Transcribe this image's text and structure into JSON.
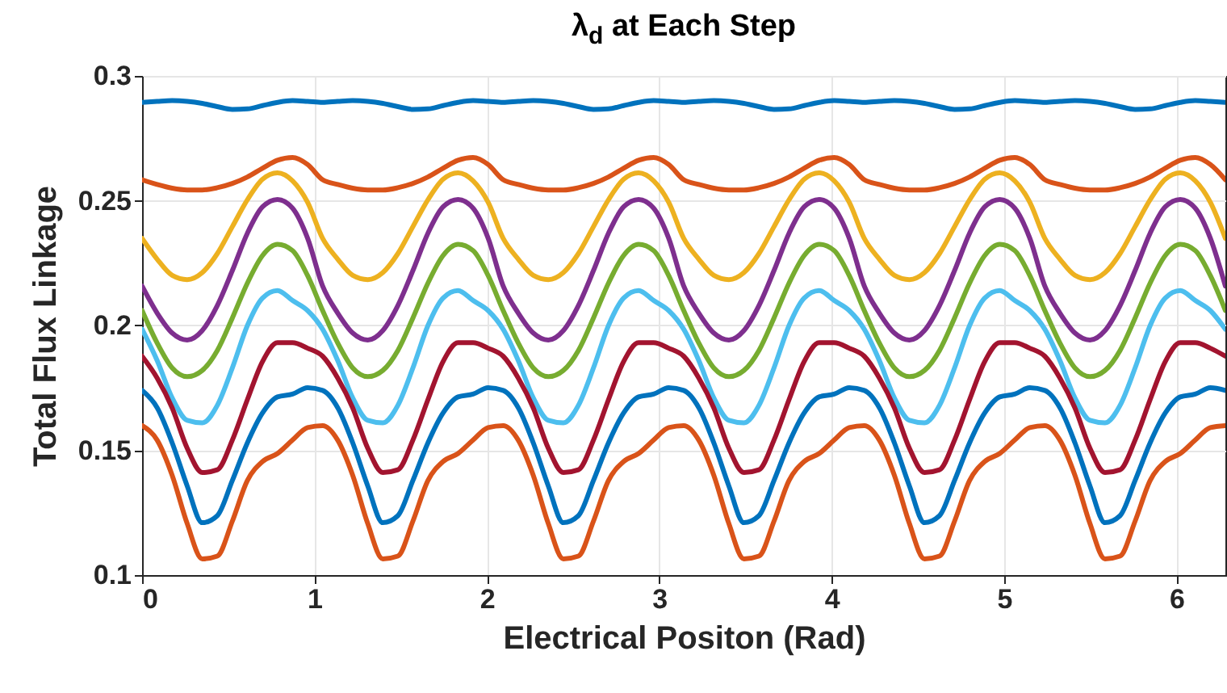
{
  "chart_data": {
    "type": "line",
    "title": "λ$_{d}$ at Each Step",
    "xlabel": "Electrical Positon (Rad)",
    "ylabel": "Total Flux Linkage",
    "x": [
      0,
      0.0873,
      0.1745,
      0.2618,
      0.3491,
      0.4363,
      0.5236,
      0.6109,
      0.6981,
      0.7854,
      0.8727,
      0.9599,
      1.0472,
      1.1345,
      1.2217,
      1.309,
      1.3963,
      1.4835,
      1.5708,
      1.6581,
      1.7453,
      1.8326,
      1.9199,
      2.0071,
      2.0944,
      2.1817,
      2.2689,
      2.3562,
      2.4435,
      2.5307,
      2.618,
      2.7053,
      2.7925,
      2.8798,
      2.9671,
      3.0543,
      3.1416,
      3.2289,
      3.3161,
      3.4034,
      3.4907,
      3.5779,
      3.6652,
      3.7525,
      3.8397,
      3.927,
      4.0143,
      4.1015,
      4.1888,
      4.2761,
      4.3633,
      4.4506,
      4.5379,
      4.6251,
      4.7124,
      4.7997,
      4.8869,
      4.9742,
      5.0615,
      5.1487,
      5.236,
      5.3233,
      5.4105,
      5.4978,
      5.5851,
      5.6723,
      5.7596,
      5.8469,
      5.9341,
      6.0214,
      6.1087,
      6.1959,
      6.2832
    ],
    "series": [
      {
        "color": "#0072bd",
        "values": [
          0.2894,
          0.2898,
          0.2901,
          0.2898,
          0.289,
          0.2877,
          0.2866,
          0.2868,
          0.2881,
          0.2894,
          0.2901,
          0.2898,
          0.2894,
          0.2898,
          0.2901,
          0.2898,
          0.289,
          0.2877,
          0.2866,
          0.2868,
          0.2881,
          0.2894,
          0.2901,
          0.2898,
          0.2894,
          0.2898,
          0.2901,
          0.2898,
          0.289,
          0.2877,
          0.2866,
          0.2868,
          0.2881,
          0.2894,
          0.2901,
          0.2898,
          0.2894,
          0.2898,
          0.2901,
          0.2898,
          0.289,
          0.2877,
          0.2866,
          0.2868,
          0.2881,
          0.2894,
          0.2901,
          0.2898,
          0.2894,
          0.2898,
          0.2901,
          0.2898,
          0.289,
          0.2877,
          0.2866,
          0.2868,
          0.2881,
          0.2894,
          0.2901,
          0.2898,
          0.2894,
          0.2898,
          0.2901,
          0.2898,
          0.289,
          0.2877,
          0.2866,
          0.2868,
          0.2881,
          0.2894,
          0.2901,
          0.2898,
          0.2894
        ]
      },
      {
        "color": "#d95319",
        "values": [
          0.2584,
          0.2565,
          0.255,
          0.2543,
          0.2543,
          0.2552,
          0.2569,
          0.2595,
          0.263,
          0.2662,
          0.2673,
          0.2645,
          0.2584,
          0.2565,
          0.255,
          0.2543,
          0.2543,
          0.2552,
          0.2569,
          0.2595,
          0.263,
          0.2662,
          0.2673,
          0.2645,
          0.2584,
          0.2565,
          0.255,
          0.2543,
          0.2543,
          0.2552,
          0.2569,
          0.2595,
          0.263,
          0.2662,
          0.2673,
          0.2645,
          0.2584,
          0.2565,
          0.255,
          0.2543,
          0.2543,
          0.2552,
          0.2569,
          0.2595,
          0.263,
          0.2662,
          0.2673,
          0.2645,
          0.2584,
          0.2565,
          0.255,
          0.2543,
          0.2543,
          0.2552,
          0.2569,
          0.2595,
          0.263,
          0.2662,
          0.2673,
          0.2645,
          0.2584,
          0.2565,
          0.255,
          0.2543,
          0.2543,
          0.2552,
          0.2569,
          0.2595,
          0.263,
          0.2662,
          0.2673,
          0.2645,
          0.2584
        ]
      },
      {
        "color": "#edb120",
        "values": [
          0.2349,
          0.2266,
          0.2201,
          0.2184,
          0.2212,
          0.2288,
          0.2396,
          0.2504,
          0.2586,
          0.2612,
          0.258,
          0.2494,
          0.2349,
          0.2266,
          0.2201,
          0.2184,
          0.2212,
          0.2288,
          0.2396,
          0.2504,
          0.2586,
          0.2612,
          0.258,
          0.2494,
          0.2349,
          0.2266,
          0.2201,
          0.2184,
          0.2212,
          0.2288,
          0.2396,
          0.2504,
          0.2586,
          0.2612,
          0.258,
          0.2494,
          0.2349,
          0.2266,
          0.2201,
          0.2184,
          0.2212,
          0.2288,
          0.2396,
          0.2504,
          0.2586,
          0.2612,
          0.258,
          0.2494,
          0.2349,
          0.2266,
          0.2201,
          0.2184,
          0.2212,
          0.2288,
          0.2396,
          0.2504,
          0.2586,
          0.2612,
          0.258,
          0.2494,
          0.2349,
          0.2266,
          0.2201,
          0.2184,
          0.2212,
          0.2288,
          0.2396,
          0.2504,
          0.2586,
          0.2612,
          0.258,
          0.2494,
          0.2349
        ]
      },
      {
        "color": "#7e2f8e",
        "values": [
          0.2158,
          0.205,
          0.197,
          0.1942,
          0.198,
          0.208,
          0.222,
          0.237,
          0.2475,
          0.2505,
          0.247,
          0.235,
          0.2158,
          0.205,
          0.197,
          0.1942,
          0.198,
          0.208,
          0.222,
          0.237,
          0.2475,
          0.2505,
          0.247,
          0.235,
          0.2158,
          0.205,
          0.197,
          0.1942,
          0.198,
          0.208,
          0.222,
          0.237,
          0.2475,
          0.2505,
          0.247,
          0.235,
          0.2158,
          0.205,
          0.197,
          0.1942,
          0.198,
          0.208,
          0.222,
          0.237,
          0.2475,
          0.2505,
          0.247,
          0.235,
          0.2158,
          0.205,
          0.197,
          0.1942,
          0.198,
          0.208,
          0.222,
          0.237,
          0.2475,
          0.2505,
          0.247,
          0.235,
          0.2158,
          0.205,
          0.197,
          0.1942,
          0.198,
          0.208,
          0.222,
          0.237,
          0.2475,
          0.2505,
          0.247,
          0.235,
          0.2158
        ]
      },
      {
        "color": "#77ac30",
        "values": [
          0.206,
          0.193,
          0.183,
          0.1795,
          0.182,
          0.19,
          0.203,
          0.217,
          0.228,
          0.2325,
          0.23,
          0.22,
          0.206,
          0.193,
          0.183,
          0.1795,
          0.182,
          0.19,
          0.203,
          0.217,
          0.228,
          0.2325,
          0.23,
          0.22,
          0.206,
          0.193,
          0.183,
          0.1795,
          0.182,
          0.19,
          0.203,
          0.217,
          0.228,
          0.2325,
          0.23,
          0.22,
          0.206,
          0.193,
          0.183,
          0.1795,
          0.182,
          0.19,
          0.203,
          0.217,
          0.228,
          0.2325,
          0.23,
          0.22,
          0.206,
          0.193,
          0.183,
          0.1795,
          0.182,
          0.19,
          0.203,
          0.217,
          0.228,
          0.2325,
          0.23,
          0.22,
          0.206,
          0.193,
          0.183,
          0.1795,
          0.182,
          0.19,
          0.203,
          0.217,
          0.228,
          0.2325,
          0.23,
          0.22,
          0.206
        ]
      },
      {
        "color": "#4dbeee",
        "values": [
          0.1985,
          0.186,
          0.171,
          0.162,
          0.161,
          0.168,
          0.183,
          0.2,
          0.211,
          0.214,
          0.21,
          0.206,
          0.1985,
          0.186,
          0.171,
          0.162,
          0.161,
          0.168,
          0.183,
          0.2,
          0.211,
          0.214,
          0.21,
          0.206,
          0.1985,
          0.186,
          0.171,
          0.162,
          0.161,
          0.168,
          0.183,
          0.2,
          0.211,
          0.214,
          0.21,
          0.206,
          0.1985,
          0.186,
          0.171,
          0.162,
          0.161,
          0.168,
          0.183,
          0.2,
          0.211,
          0.214,
          0.21,
          0.206,
          0.1985,
          0.186,
          0.171,
          0.162,
          0.161,
          0.168,
          0.183,
          0.2,
          0.211,
          0.214,
          0.21,
          0.206,
          0.1985,
          0.186,
          0.171,
          0.162,
          0.161,
          0.168,
          0.183,
          0.2,
          0.211,
          0.214,
          0.21,
          0.206,
          0.1985
        ]
      },
      {
        "color": "#a2142f",
        "values": [
          0.1877,
          0.179,
          0.167,
          0.1508,
          0.1411,
          0.1422,
          0.1541,
          0.1703,
          0.1855,
          0.1931,
          0.1931,
          0.1909,
          0.1877,
          0.179,
          0.167,
          0.1508,
          0.1411,
          0.1422,
          0.1541,
          0.1703,
          0.1855,
          0.1931,
          0.1931,
          0.1909,
          0.1877,
          0.179,
          0.167,
          0.1508,
          0.1411,
          0.1422,
          0.1541,
          0.1703,
          0.1855,
          0.1931,
          0.1931,
          0.1909,
          0.1877,
          0.179,
          0.167,
          0.1508,
          0.1411,
          0.1422,
          0.1541,
          0.1703,
          0.1855,
          0.1931,
          0.1931,
          0.1909,
          0.1877,
          0.179,
          0.167,
          0.1508,
          0.1411,
          0.1422,
          0.1541,
          0.1703,
          0.1855,
          0.1931,
          0.1931,
          0.1909,
          0.1877,
          0.179,
          0.167,
          0.1508,
          0.1411,
          0.1422,
          0.1541,
          0.1703,
          0.1855,
          0.1931,
          0.1931,
          0.1909,
          0.1877
        ]
      },
      {
        "color": "#0072bd",
        "values": [
          0.174,
          0.1671,
          0.153,
          0.1357,
          0.121,
          0.1238,
          0.1379,
          0.153,
          0.1649,
          0.1714,
          0.1725,
          0.1751,
          0.174,
          0.1671,
          0.153,
          0.1357,
          0.121,
          0.1238,
          0.1379,
          0.153,
          0.1649,
          0.1714,
          0.1725,
          0.1751,
          0.174,
          0.1671,
          0.153,
          0.1357,
          0.121,
          0.1238,
          0.1379,
          0.153,
          0.1649,
          0.1714,
          0.1725,
          0.1751,
          0.174,
          0.1671,
          0.153,
          0.1357,
          0.121,
          0.1238,
          0.1379,
          0.153,
          0.1649,
          0.1714,
          0.1725,
          0.1751,
          0.174,
          0.1671,
          0.153,
          0.1357,
          0.121,
          0.1238,
          0.1379,
          0.153,
          0.1649,
          0.1714,
          0.1725,
          0.1751,
          0.174,
          0.1671,
          0.153,
          0.1357,
          0.121,
          0.1238,
          0.1379,
          0.153,
          0.1649,
          0.1714,
          0.1725,
          0.1751,
          0.174
        ]
      },
      {
        "color": "#d95319",
        "values": [
          0.1599,
          0.1541,
          0.14,
          0.1206,
          0.1065,
          0.1076,
          0.1216,
          0.1379,
          0.1455,
          0.1487,
          0.1541,
          0.1591,
          0.1599,
          0.1541,
          0.14,
          0.1206,
          0.1065,
          0.1076,
          0.1216,
          0.1379,
          0.1455,
          0.1487,
          0.1541,
          0.1591,
          0.1599,
          0.1541,
          0.14,
          0.1206,
          0.1065,
          0.1076,
          0.1216,
          0.1379,
          0.1455,
          0.1487,
          0.1541,
          0.1591,
          0.1599,
          0.1541,
          0.14,
          0.1206,
          0.1065,
          0.1076,
          0.1216,
          0.1379,
          0.1455,
          0.1487,
          0.1541,
          0.1591,
          0.1599,
          0.1541,
          0.14,
          0.1206,
          0.1065,
          0.1076,
          0.1216,
          0.1379,
          0.1455,
          0.1487,
          0.1541,
          0.1591,
          0.1599,
          0.1541,
          0.14,
          0.1206,
          0.1065,
          0.1076,
          0.1216,
          0.1379,
          0.1455,
          0.1487,
          0.1541,
          0.1591,
          0.1599
        ]
      }
    ],
    "xlim": [
      0,
      6.2832
    ],
    "xticks": [
      0,
      1,
      2,
      3,
      4,
      5,
      6
    ],
    "ylim": [
      0.1,
      0.3
    ],
    "yticks": [
      0.1,
      0.15,
      0.2,
      0.25,
      0.3
    ],
    "grid": true
  }
}
